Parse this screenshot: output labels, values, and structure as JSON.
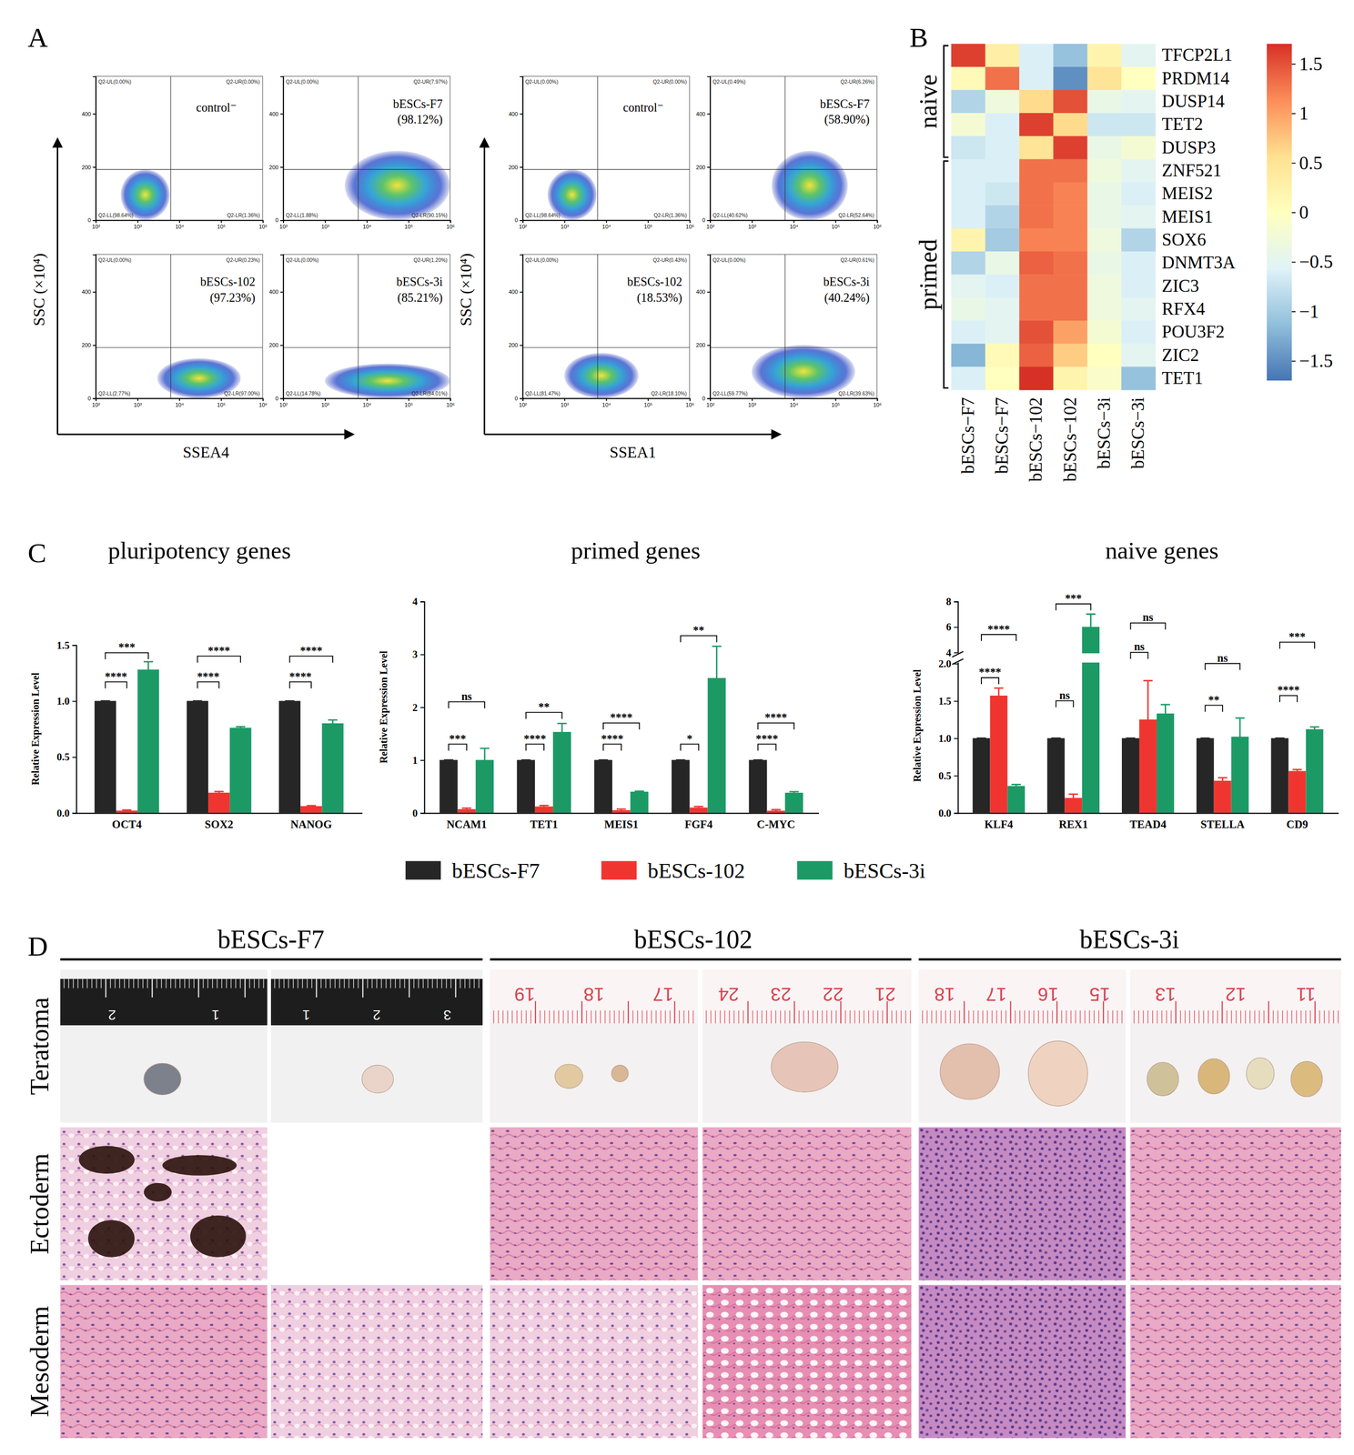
{
  "figure": {
    "panel_labels": [
      "A",
      "B",
      "C",
      "D"
    ],
    "panel_d": {
      "columns": [
        "bESCs-F7",
        "bESCs-102",
        "bESCs-3i"
      ],
      "rows": [
        "Teratoma",
        "Ectoderm",
        "Mesoderm"
      ],
      "rulers": [
        [
          "2",
          "1"
        ],
        [
          "1",
          "2",
          "3"
        ],
        [
          "19",
          "18",
          "17"
        ],
        [
          "24",
          "23",
          "22",
          "21"
        ],
        [
          "18",
          "17",
          "16",
          "15"
        ],
        [
          "13",
          "12",
          "11"
        ]
      ]
    }
  },
  "chart_data": [
    {
      "type": "density",
      "xlabel": "SSEA4",
      "ylabel": "SSC (×10⁴)",
      "log": "x",
      "xlim": [
        100,
        1000000
      ],
      "xticks": [
        {
          "value": 100,
          "label": "10²"
        },
        {
          "value": 1000,
          "label": "10³"
        },
        {
          "value": 10000,
          "label": "10⁴"
        },
        {
          "value": 100000,
          "label": "10⁵"
        },
        {
          "value": 1000000,
          "label": "10⁶"
        }
      ],
      "ylim": [
        0,
        540
      ],
      "yticks": [
        0,
        200,
        400
      ],
      "gate": {
        "x": 6300,
        "y": 190
      },
      "plots": [
        {
          "label": "control⁻",
          "quadrants": [
            "Q2-UL(0.00%)",
            "Q2-UR(0.00%)",
            "Q2-LL(98.64%)",
            "Q2-LR(1.36%)"
          ],
          "cluster_x": [
            400,
            6000
          ],
          "cluster_y": [
            0,
            190
          ]
        },
        {
          "label": "bESCs-F7",
          "percent_label": "(98.12%)",
          "quadrants": [
            "Q2-UL(0.00%)",
            "Q2-UR(7.97%)",
            "Q2-LL(1.88%)",
            "Q2-LR(90.15%)"
          ],
          "cluster_x": [
            3000,
            1000000
          ],
          "cluster_y": [
            0,
            260
          ]
        },
        {
          "label": "bESCs-102",
          "percent_label": "(97.23%)",
          "quadrants": [
            "Q2-UL(0.00%)",
            "Q2-UR(0.23%)",
            "Q2-LL(2.77%)",
            "Q2-LR(97.00%)"
          ],
          "cluster_x": [
            3000,
            300000
          ],
          "cluster_y": [
            0,
            150
          ]
        },
        {
          "label": "bESCs-3i",
          "percent_label": "(85.21%)",
          "quadrants": [
            "Q2-UL(0.00%)",
            "Q2-UR(1.20%)",
            "Q2-LL(14.78%)",
            "Q2-LR(84.01%)"
          ],
          "cluster_x": [
            1000,
            1000000
          ],
          "cluster_y": [
            0,
            130
          ]
        }
      ]
    },
    {
      "type": "density",
      "xlabel": "SSEA1",
      "ylabel": "SSC (×10⁴)",
      "log": "x",
      "xlim": [
        100,
        1000000
      ],
      "xticks": [
        {
          "value": 100,
          "label": "10²"
        },
        {
          "value": 1000,
          "label": "10³"
        },
        {
          "value": 10000,
          "label": "10⁴"
        },
        {
          "value": 100000,
          "label": "10⁵"
        },
        {
          "value": 1000000,
          "label": "10⁶"
        }
      ],
      "ylim": [
        0,
        540
      ],
      "yticks": [
        0,
        200,
        400
      ],
      "gate": {
        "x": 6300,
        "y": 190
      },
      "plots": [
        {
          "label": "control⁻",
          "quadrants": [
            "Q2-UL(0.00%)",
            "Q2-UR(0.00%)",
            "Q2-LL(98.64%)",
            "Q2-LR(1.36%)"
          ],
          "cluster_x": [
            400,
            6000
          ],
          "cluster_y": [
            0,
            190
          ]
        },
        {
          "label": "bESCs-F7",
          "percent_label": "(58.90%)",
          "quadrants": [
            "Q2-UL(0.49%)",
            "Q2-UR(6.26%)",
            "Q2-LL(40.62%)",
            "Q2-LR(52.64%)"
          ],
          "cluster_x": [
            3000,
            200000
          ],
          "cluster_y": [
            0,
            260
          ]
        },
        {
          "label": "bESCs-102",
          "percent_label": "(18.53%)",
          "quadrants": [
            "Q2-UL(0.00%)",
            "Q2-UR(0.43%)",
            "Q2-LL(81.47%)",
            "Q2-LR(18.10%)"
          ],
          "cluster_x": [
            1000,
            60000
          ],
          "cluster_y": [
            0,
            170
          ]
        },
        {
          "label": "bESCs-3i",
          "percent_label": "(40.24%)",
          "quadrants": [
            "Q2-UL(0.00%)",
            "Q2-UR(0.61%)",
            "Q2-LL(59.77%)",
            "Q2-LR(39.63%)"
          ],
          "cluster_x": [
            1000,
            300000
          ],
          "cluster_y": [
            0,
            200
          ]
        }
      ]
    },
    {
      "type": "heatmap",
      "columns": [
        "bESCs−F7",
        "bESCs−F7",
        "bESCs−102",
        "bESCs−102",
        "bESCs−3i",
        "bESCs−3i"
      ],
      "rows": [
        "TFCP2L1",
        "PRDM14",
        "DUSP14",
        "TET2",
        "DUSP3",
        "ZNF521",
        "MEIS2",
        "MEIS1",
        "SOX6",
        "DNMT3A",
        "ZIC3",
        "RFX4",
        "POU3F2",
        "ZIC2",
        "TET1"
      ],
      "groups": [
        {
          "name": "naive",
          "count": 5
        },
        {
          "name": "primed",
          "count": 10
        }
      ],
      "cells": [
        [
          1.6,
          0.3,
          -0.6,
          -1.1,
          0.2,
          -0.5
        ],
        [
          0.1,
          1.3,
          -0.6,
          -1.5,
          0.5,
          0.0
        ],
        [
          -0.9,
          -0.3,
          0.6,
          1.5,
          -0.4,
          -0.5
        ],
        [
          -0.2,
          -0.6,
          1.6,
          0.6,
          -0.7,
          -0.7
        ],
        [
          -0.7,
          -0.6,
          0.5,
          1.6,
          -0.4,
          -0.2
        ],
        [
          -0.6,
          -0.6,
          1.3,
          1.3,
          -0.3,
          -0.5
        ],
        [
          -0.6,
          -0.7,
          1.3,
          1.2,
          -0.4,
          -0.6
        ],
        [
          -0.6,
          -0.9,
          1.3,
          1.2,
          -0.4,
          -0.5
        ],
        [
          0.2,
          -1.0,
          1.2,
          1.2,
          -0.3,
          -0.9
        ],
        [
          -0.9,
          -0.4,
          1.4,
          1.3,
          -0.4,
          -0.6
        ],
        [
          -0.5,
          -0.6,
          1.3,
          1.3,
          -0.3,
          -0.6
        ],
        [
          -0.4,
          -0.5,
          1.3,
          1.3,
          -0.3,
          -0.5
        ],
        [
          -0.6,
          -0.5,
          1.5,
          1.0,
          -0.2,
          -0.6
        ],
        [
          -1.2,
          0.1,
          1.4,
          0.7,
          0.0,
          -0.5
        ],
        [
          -0.6,
          0.0,
          1.7,
          0.2,
          -0.1,
          -1.1
        ]
      ],
      "clim": [
        -1.7,
        1.7
      ],
      "cticks": [
        {
          "value": -1.5,
          "label": "−1.5"
        },
        {
          "value": -1,
          "label": "−1"
        },
        {
          "value": -0.5,
          "label": "−0.5"
        },
        0,
        0.5,
        1,
        1.5
      ],
      "colors": [
        "#4575b4",
        "#91bfdb",
        "#e0f3f8",
        "#ffffbf",
        "#fee090",
        "#fc8d59",
        "#d73027"
      ]
    },
    {
      "type": "bar",
      "title": "pluripotency genes",
      "ylabel": "Relative Expression Level",
      "categories": [
        "OCT4",
        "SOX2",
        "NANOG"
      ],
      "series": [
        {
          "color": "#262626",
          "values": [
            1,
            1,
            1
          ],
          "errors": [
            0,
            0,
            0
          ]
        },
        {
          "color": "#f03530",
          "values": [
            0.02,
            0.18,
            0.06
          ],
          "errors": [
            0.005,
            0.01,
            0.005
          ]
        },
        {
          "color": "#1b9a66",
          "values": [
            1.28,
            0.76,
            0.8
          ],
          "errors": [
            0.07,
            0.01,
            0.03
          ]
        }
      ],
      "ylim": [
        0,
        1.5
      ],
      "yticks": [
        {
          "value": 0,
          "label": "0.0"
        },
        0.5,
        {
          "value": 1,
          "label": "1.0"
        },
        1.5
      ],
      "annotations": [
        {
          "category": 0,
          "series": 1,
          "y": 1.17,
          "text": "****"
        },
        {
          "category": 0,
          "series": 2,
          "y": 1.43,
          "text": "***"
        },
        {
          "category": 1,
          "series": 1,
          "y": 1.17,
          "text": "****"
        },
        {
          "category": 1,
          "series": 2,
          "y": 1.4,
          "text": "****"
        },
        {
          "category": 2,
          "series": 1,
          "y": 1.17,
          "text": "****"
        },
        {
          "category": 2,
          "series": 2,
          "y": 1.4,
          "text": "****"
        }
      ]
    },
    {
      "type": "bar",
      "title": "primed genes",
      "ylabel": "Relative Expression Level",
      "categories": [
        "NCAM1",
        "TET1",
        "MEIS1",
        "FGF4",
        "C-MYC"
      ],
      "series": [
        {
          "name": "bESCs-F7",
          "color": "#262626",
          "values": [
            1,
            1,
            1,
            1,
            1
          ],
          "errors": [
            0,
            0,
            0,
            0,
            0
          ]
        },
        {
          "name": "bESCs-102",
          "color": "#f03530",
          "values": [
            0.07,
            0.12,
            0.05,
            0.1,
            0.04
          ],
          "errors": [
            0.02,
            0.02,
            0.02,
            0.02,
            0.02
          ]
        },
        {
          "name": "bESCs-3i",
          "color": "#1b9a66",
          "values": [
            1.0,
            1.53,
            0.4,
            2.55,
            0.38
          ],
          "errors": [
            0.22,
            0.16,
            0.01,
            0.6,
            0.02
          ]
        }
      ],
      "ylim": [
        0,
        4
      ],
      "yticks": [
        0,
        1,
        2,
        3,
        4
      ],
      "legend": "bottom",
      "annotations": [
        {
          "category": 0,
          "series": 1,
          "y": 1.3,
          "text": "***"
        },
        {
          "category": 0,
          "series": 2,
          "y": 2.1,
          "text": "ns"
        },
        {
          "category": 1,
          "series": 1,
          "y": 1.3,
          "text": "****"
        },
        {
          "category": 1,
          "series": 2,
          "y": 1.9,
          "text": "**"
        },
        {
          "category": 2,
          "series": 1,
          "y": 1.3,
          "text": "****"
        },
        {
          "category": 2,
          "series": 2,
          "y": 1.7,
          "text": "****"
        },
        {
          "category": 3,
          "series": 1,
          "y": 1.3,
          "text": "*"
        },
        {
          "category": 3,
          "series": 2,
          "y": 3.35,
          "text": "**"
        },
        {
          "category": 4,
          "series": 1,
          "y": 1.3,
          "text": "****"
        },
        {
          "category": 4,
          "series": 2,
          "y": 1.7,
          "text": "****"
        }
      ]
    },
    {
      "type": "bar",
      "title": "naive genes",
      "ylabel": "Relative Expression Level",
      "categories": [
        "KLF4",
        "REX1",
        "TEAD4",
        "STELLA",
        "CD9"
      ],
      "series": [
        {
          "color": "#262626",
          "values": [
            1,
            1,
            1,
            1,
            1
          ],
          "errors": [
            0,
            0,
            0,
            0,
            0
          ]
        },
        {
          "color": "#f03530",
          "values": [
            1.57,
            0.2,
            1.25,
            0.43,
            0.56
          ],
          "errors": [
            0.1,
            0.05,
            0.52,
            0.04,
            0.02
          ]
        },
        {
          "color": "#1b9a66",
          "values": [
            0.36,
            6.0,
            1.33,
            1.02,
            1.12
          ],
          "errors": [
            0.02,
            1.0,
            0.12,
            0.25,
            0.03
          ]
        }
      ],
      "ylim": [
        0,
        8
      ],
      "axis_break": [
        2,
        4
      ],
      "yticks": [
        {
          "value": 0,
          "label": "0.0"
        },
        0.5,
        {
          "value": 1,
          "label": "1.0"
        },
        1.5,
        {
          "value": 2,
          "label": "2.0"
        },
        4,
        6,
        8
      ],
      "annotations": [
        {
          "category": 0,
          "series": 1,
          "y": 1.81,
          "text": "****"
        },
        {
          "category": 0,
          "series": 2,
          "y": 5.4,
          "text": "****"
        },
        {
          "category": 1,
          "series": 1,
          "y": 1.5,
          "text": "ns"
        },
        {
          "category": 1,
          "series": 2,
          "y": 7.8,
          "text": "***"
        },
        {
          "category": 2,
          "series": 1,
          "y": 4.0,
          "text": "ns"
        },
        {
          "category": 2,
          "series": 2,
          "y": 6.3,
          "text": "ns"
        },
        {
          "category": 3,
          "series": 1,
          "y": 1.44,
          "text": "**"
        },
        {
          "category": 3,
          "series": 2,
          "y": 2.0,
          "text": "ns"
        },
        {
          "category": 4,
          "series": 1,
          "y": 1.57,
          "text": "****"
        },
        {
          "category": 4,
          "series": 2,
          "y": 4.8,
          "text": "***"
        }
      ]
    }
  ]
}
